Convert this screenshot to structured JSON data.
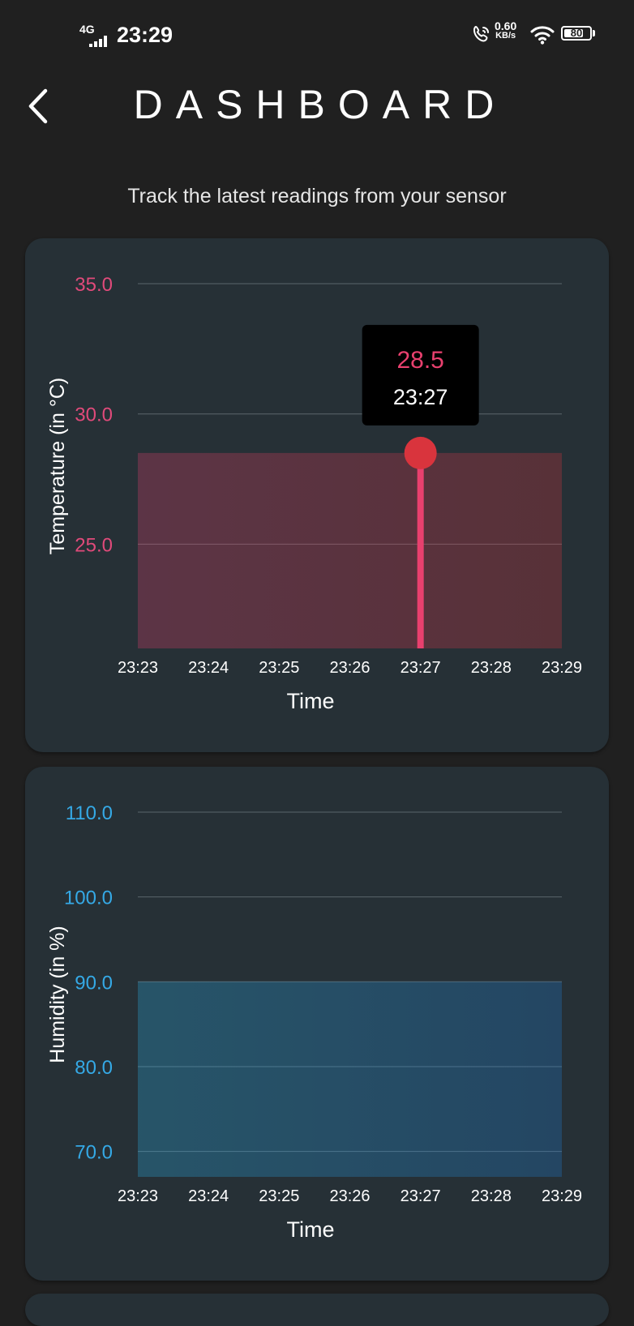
{
  "status_bar": {
    "network": "4G",
    "time": "23:29",
    "speed_value": "0.60",
    "speed_unit": "KB/s",
    "battery": "80",
    "battery_level": 0.8,
    "icons": [
      "signal-icon",
      "wifi-call-icon",
      "wifi-icon",
      "battery-icon"
    ]
  },
  "header": {
    "title": "DASHBOARD",
    "back_icon": "chevron-left-icon",
    "subtitle": "Track the latest readings from your sensor"
  },
  "colors": {
    "background": "#202020",
    "card": "#263036",
    "temp_start": "#e8406e",
    "temp_end": "#d9343d",
    "humidity_start": "#2ab3ea",
    "humidity_end": "#1f7fd6"
  },
  "chart_data": [
    {
      "type": "area",
      "ylabel": "Temperature (in °C)",
      "xlabel": "Time",
      "x": [
        "23:23",
        "23:24",
        "23:25",
        "23:26",
        "23:27",
        "23:28",
        "23:29"
      ],
      "y": [
        28.5,
        28.5,
        28.5,
        28.5,
        28.5,
        28.5,
        28.5
      ],
      "ylim": [
        21,
        35
      ],
      "yticks": [
        "35.0",
        "30.0",
        "25.0"
      ],
      "ytick_values": [
        35,
        30,
        25
      ],
      "grid": true,
      "tooltip": {
        "value": "28.5",
        "time": "23:27",
        "index": 4
      }
    },
    {
      "type": "area",
      "ylabel": "Humidity (in %)",
      "xlabel": "Time",
      "x": [
        "23:23",
        "23:24",
        "23:25",
        "23:26",
        "23:27",
        "23:28",
        "23:29"
      ],
      "y": [
        90,
        90,
        90,
        90,
        90,
        90,
        90
      ],
      "ylim": [
        67,
        110
      ],
      "yticks": [
        "110.0",
        "100.0",
        "90.0",
        "80.0",
        "70.0"
      ],
      "ytick_values": [
        110,
        100,
        90,
        80,
        70
      ],
      "grid": true
    }
  ]
}
